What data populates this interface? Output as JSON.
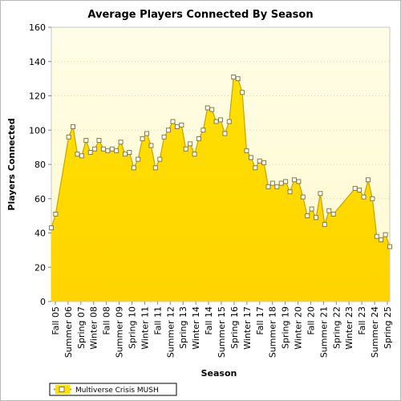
{
  "chart_data": {
    "type": "area",
    "title": "Average Players Connected By Season",
    "xlabel": "Season",
    "ylabel": "Players Connected",
    "ylim": [
      0,
      160
    ],
    "yticks": [
      0,
      20,
      40,
      60,
      80,
      100,
      120,
      140,
      160
    ],
    "grid": true,
    "legend_position": "bottom-left",
    "x_tick_labels": [
      "Fall 05",
      "Summer 06",
      "Spring 07",
      "Winter 08",
      "Fall 08",
      "Summer 09",
      "Spring 10",
      "Winter 11",
      "Fall 11",
      "Summer 12",
      "Spring 13",
      "Winter 14",
      "Fall 14",
      "Summer 15",
      "Spring 16",
      "Winter 17",
      "Fall 17",
      "Summer 18",
      "Spring 19",
      "Winter 20",
      "Fall 20",
      "Summer 21",
      "Spring 22",
      "Winter 23",
      "Fall 23",
      "Summer 24",
      "Spring 25"
    ],
    "series": [
      {
        "name": "Multiverse Crisis MUSH",
        "color": "#ffe000",
        "line_color": "#c9a300",
        "values": [
          43,
          51,
          null,
          null,
          96,
          102,
          86,
          85,
          94,
          87,
          89,
          94,
          89,
          88,
          89,
          88,
          93,
          86,
          87,
          78,
          83,
          95,
          98,
          91,
          78,
          83,
          96,
          100,
          105,
          102,
          103,
          89,
          92,
          86,
          95,
          100,
          113,
          112,
          105,
          106,
          98,
          105,
          131,
          130,
          122,
          88,
          84,
          78,
          82,
          81,
          67,
          69,
          67,
          69,
          70,
          64,
          71,
          70,
          61,
          50,
          54,
          49,
          63,
          45,
          53,
          51,
          null,
          null,
          null,
          null,
          66,
          65,
          61,
          71,
          60,
          38,
          36,
          39,
          32
        ]
      }
    ]
  }
}
